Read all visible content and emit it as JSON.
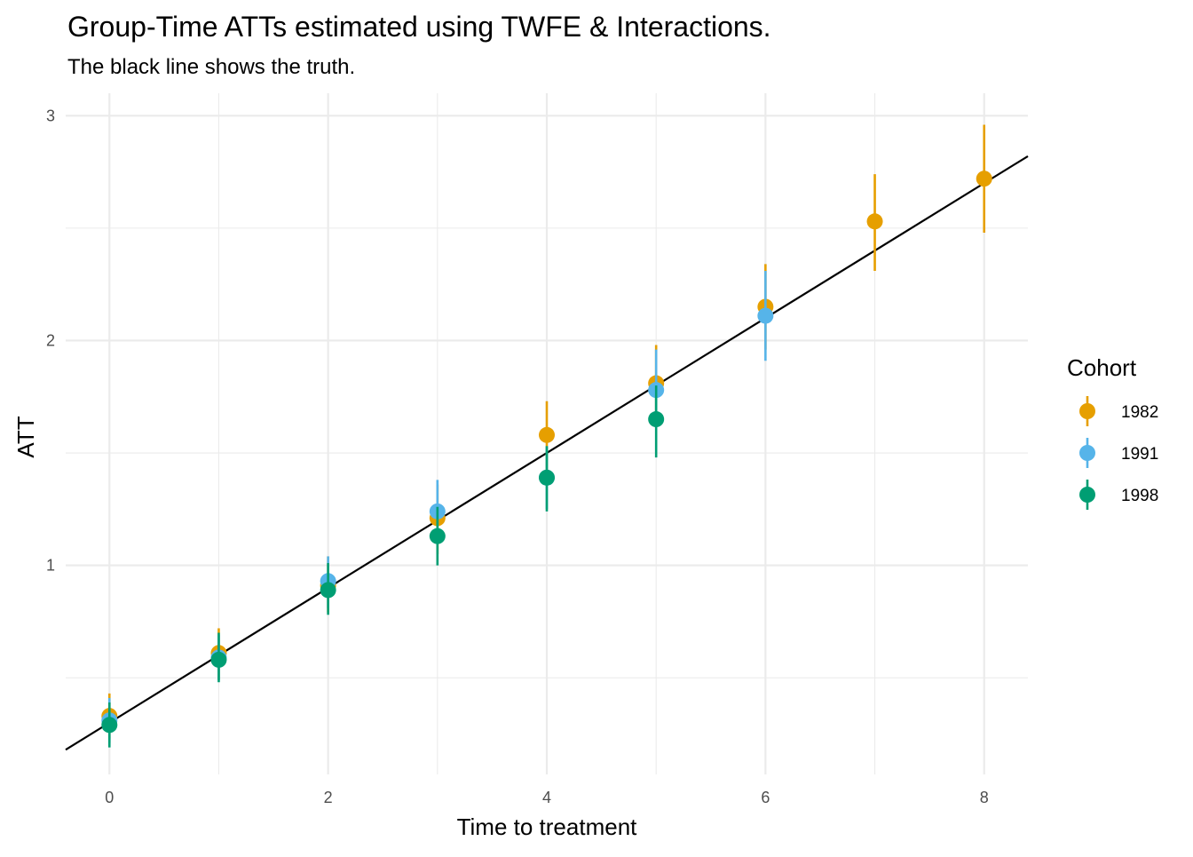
{
  "chart_data": {
    "type": "scatter",
    "title": "Group-Time ATTs estimated using TWFE & Interactions.",
    "subtitle": "The black line shows the truth.",
    "xlabel": "Time to treatment",
    "ylabel": "ATT",
    "xlim": [
      -0.4,
      8.4
    ],
    "ylim": [
      0.07,
      3.1
    ],
    "x_ticks": [
      0,
      2,
      4,
      6,
      8
    ],
    "y_ticks": [
      1,
      2,
      3
    ],
    "grid": true,
    "legend": {
      "title": "Cohort",
      "position": "right"
    },
    "truth_line": {
      "intercept": 0.3,
      "slope": 0.3
    },
    "series": [
      {
        "name": "1982",
        "color": "#E69F00",
        "x": [
          0,
          1,
          2,
          3,
          4,
          5,
          6,
          7,
          8
        ],
        "y": [
          0.33,
          0.61,
          0.91,
          1.21,
          1.58,
          1.81,
          2.15,
          2.53,
          2.72
        ],
        "lower": [
          0.23,
          0.49,
          0.79,
          1.05,
          1.42,
          1.65,
          1.96,
          2.31,
          2.48
        ],
        "upper": [
          0.43,
          0.72,
          1.04,
          1.36,
          1.73,
          1.98,
          2.34,
          2.74,
          2.96
        ]
      },
      {
        "name": "1991",
        "color": "#56B4E9",
        "x": [
          0,
          1,
          2,
          3,
          4,
          5,
          6
        ],
        "y": [
          0.31,
          0.59,
          0.93,
          1.24,
          1.39,
          1.78,
          2.11
        ],
        "lower": [
          0.21,
          0.49,
          0.81,
          1.1,
          1.25,
          1.63,
          1.91
        ],
        "upper": [
          0.41,
          0.69,
          1.04,
          1.38,
          1.53,
          1.96,
          2.31
        ]
      },
      {
        "name": "1998",
        "color": "#009E73",
        "x": [
          0,
          1,
          2,
          3,
          4,
          5
        ],
        "y": [
          0.29,
          0.58,
          0.89,
          1.13,
          1.39,
          1.65
        ],
        "lower": [
          0.19,
          0.48,
          0.78,
          1.0,
          1.24,
          1.48
        ],
        "upper": [
          0.39,
          0.7,
          1.01,
          1.26,
          1.53,
          1.8
        ]
      }
    ]
  }
}
